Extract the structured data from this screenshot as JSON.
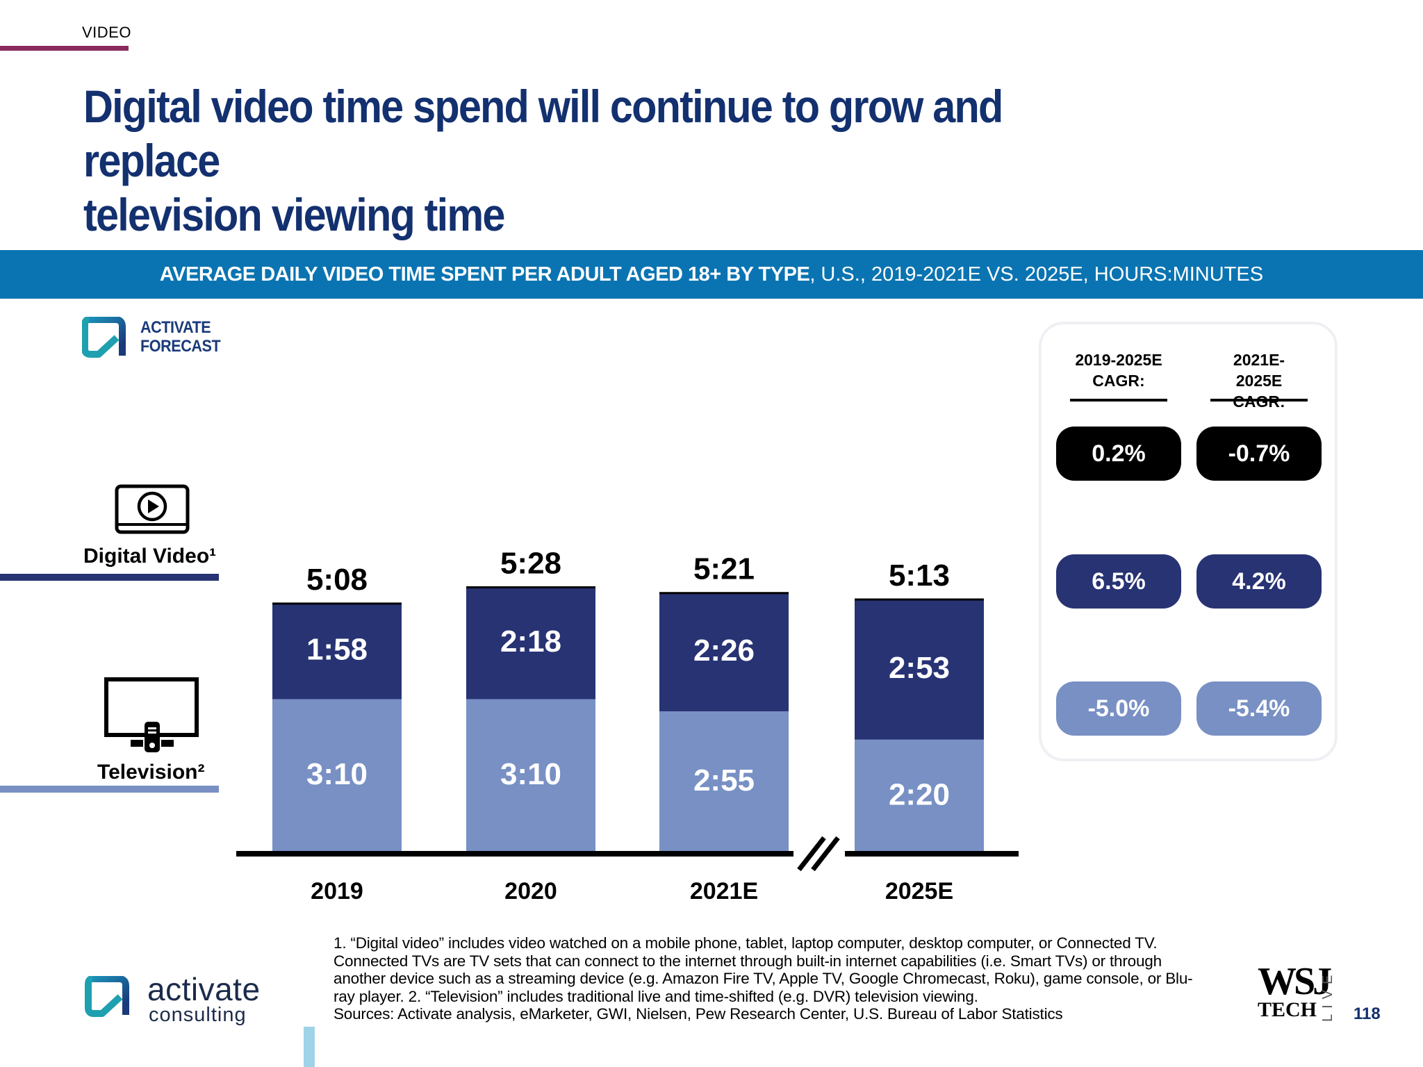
{
  "header": {
    "section": "VIDEO",
    "title_line1": "Digital video time spend will continue to grow and replace",
    "title_line2": "television viewing time"
  },
  "banner": {
    "bold": "AVERAGE DAILY VIDEO TIME SPENT PER ADULT AGED 18+ BY TYPE",
    "regular": ", U.S., 2019-2021E VS. 2025E, HOURS:MINUTES"
  },
  "forecast_logo": {
    "line1": "ACTIVATE",
    "line2": "FORECAST"
  },
  "legend": {
    "digital": "Digital Video¹",
    "tv": "Television²"
  },
  "colors": {
    "digital": "#283374",
    "tv": "#7890c4",
    "axis": "#000000",
    "title": "#13306f",
    "banner": "#0a74b2"
  },
  "chart_data": {
    "type": "bar",
    "stacked": true,
    "categories": [
      "2019",
      "2020",
      "2021E",
      "2025E"
    ],
    "series": [
      {
        "name": "Television²",
        "values": [
          190,
          190,
          175,
          140
        ],
        "labels": [
          "3:10",
          "3:10",
          "2:55",
          "2:20"
        ]
      },
      {
        "name": "Digital Video¹",
        "values": [
          118,
          138,
          146,
          173
        ],
        "labels": [
          "1:58",
          "2:18",
          "2:26",
          "2:53"
        ]
      }
    ],
    "totals": [
      308,
      328,
      321,
      313
    ],
    "total_labels": [
      "5:08",
      "5:28",
      "5:21",
      "5:13"
    ],
    "units": "HOURS:MINUTES",
    "axis_break_between": [
      "2021E",
      "2025E"
    ],
    "title": "AVERAGE DAILY VIDEO TIME SPENT PER ADULT AGED 18+ BY TYPE, U.S., 2019-2021E VS. 2025E, HOURS:MINUTES"
  },
  "cagr": {
    "headers": [
      {
        "line1": "2019-2025E",
        "line2": "CAGR:"
      },
      {
        "line1": "2021E-2025E",
        "line2": "CAGR:"
      }
    ],
    "rows": [
      {
        "key": "total",
        "values": [
          "0.2%",
          "-0.7%"
        ],
        "color": "#000000"
      },
      {
        "key": "digital",
        "values": [
          "6.5%",
          "4.2%"
        ],
        "color": "#283374"
      },
      {
        "key": "tv",
        "values": [
          "-5.0%",
          "-5.4%"
        ],
        "color": "#7890c4"
      }
    ]
  },
  "footnotes": [
    "1. “Digital video” includes video watched on a mobile phone, tablet, laptop computer, desktop computer, or Connected TV.",
    "Connected TVs are TV sets that can connect to the internet through built-in internet capabilities (i.e. Smart TVs) or through",
    "another device such as a streaming device (e.g. Amazon Fire TV, Apple TV, Google Chromecast, Roku), game console, or Blu-",
    "ray player.  2. “Television” includes traditional live and time-shifted (e.g. DVR) television viewing.",
    "Sources: Activate analysis, eMarketer, GWI, Nielsen, Pew Research Center, U.S. Bureau of Labor Statistics"
  ],
  "footer": {
    "brand_word1": "activate",
    "brand_word2": "consulting",
    "wsj": "WSJ",
    "tech": "TECH",
    "live": "LIVE",
    "page": "118"
  }
}
